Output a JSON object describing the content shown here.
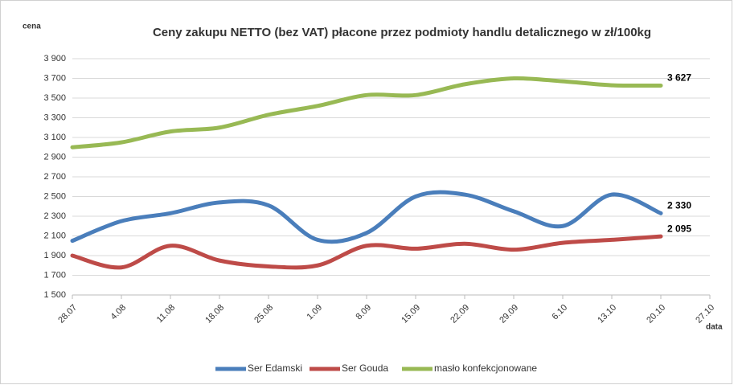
{
  "chart_data": {
    "type": "line",
    "title": "Ceny zakupu NETTO (bez VAT) płacone przez podmioty handlu detalicznego w zł/100kg",
    "y_label": "cena",
    "x_label": "data",
    "categories": [
      "28.07",
      "4.08",
      "11.08",
      "18.08",
      "25.08",
      "1.09",
      "8.09",
      "15.09",
      "22.09",
      "29.09",
      "6.10",
      "13.10",
      "20.10",
      "27.10"
    ],
    "series": [
      {
        "name": "Ser Edamski",
        "color": "#4a7ebb",
        "values": [
          2050,
          2250,
          2330,
          2440,
          2410,
          2060,
          2130,
          2500,
          2520,
          2350,
          2200,
          2520,
          2330,
          null
        ],
        "value_labels": [
          null,
          null,
          null,
          null,
          null,
          null,
          null,
          null,
          null,
          null,
          null,
          null,
          "2 330",
          null
        ]
      },
      {
        "name": "Ser Gouda",
        "color": "#be4b48",
        "values": [
          1900,
          1780,
          2000,
          1850,
          1790,
          1800,
          2000,
          1970,
          2020,
          1960,
          2030,
          2060,
          2095,
          null
        ],
        "value_labels": [
          null,
          null,
          null,
          null,
          null,
          null,
          null,
          null,
          null,
          null,
          null,
          null,
          "2 095",
          null
        ]
      },
      {
        "name": "masło konfekcjonowane",
        "color": "#98b954",
        "values": [
          3000,
          3050,
          3160,
          3200,
          3330,
          3420,
          3530,
          3530,
          3640,
          3700,
          3670,
          3630,
          3627,
          null
        ],
        "value_labels": [
          null,
          null,
          null,
          null,
          null,
          null,
          null,
          null,
          null,
          null,
          null,
          null,
          "3 627",
          null
        ]
      }
    ],
    "ylim": [
      1500,
      3900
    ],
    "yticks": [
      {
        "value": 1500,
        "label": "1 500"
      },
      {
        "value": 1700,
        "label": "1 700"
      },
      {
        "value": 1900,
        "label": "1 900"
      },
      {
        "value": 2100,
        "label": "2 100"
      },
      {
        "value": 2300,
        "label": "2 300"
      },
      {
        "value": 2500,
        "label": "2 500"
      },
      {
        "value": 2700,
        "label": "2 700"
      },
      {
        "value": 2900,
        "label": "2 900"
      },
      {
        "value": 3100,
        "label": "3 100"
      },
      {
        "value": 3300,
        "label": "3 300"
      },
      {
        "value": 3500,
        "label": "3 500"
      },
      {
        "value": 3700,
        "label": "3 700"
      },
      {
        "value": 3900,
        "label": "3 900"
      }
    ],
    "grid": true,
    "legend": "bottom"
  }
}
